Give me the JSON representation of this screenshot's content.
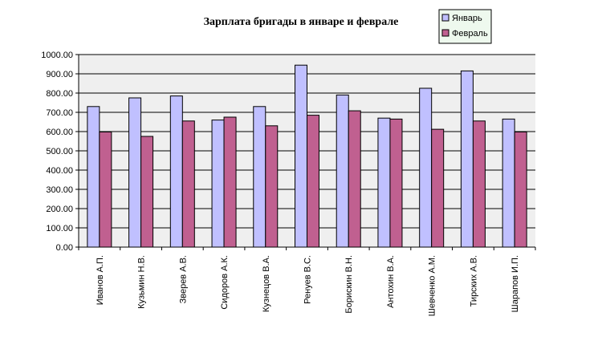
{
  "chart_data": {
    "type": "bar",
    "title": "Зарплата бригады в январе и феврале",
    "categories": [
      "Иванов А.П.",
      "Кузьмин Н.В.",
      "Зверев А.В.",
      "Сидоров А.К.",
      "Кузнецов В.А.",
      "Ренуев В.С.",
      "Борискин В.Н.",
      "Антохин В.А.",
      "Шевченко А.М.",
      "Тирских А.В.",
      "Шарапов И.П."
    ],
    "series": [
      {
        "name": "Январь",
        "color": "#c0c0ff",
        "values": [
          730,
          775,
          785,
          660,
          730,
          945,
          790,
          670,
          825,
          915,
          665
        ]
      },
      {
        "name": "Февраль",
        "color": "#c06090",
        "values": [
          598,
          575,
          655,
          675,
          630,
          685,
          708,
          665,
          612,
          655,
          598
        ]
      }
    ],
    "yticks": [
      "0.00",
      "100.00",
      "200.00",
      "300.00",
      "400.00",
      "500.00",
      "600.00",
      "700.00",
      "800.00",
      "900.00",
      "1000.00"
    ],
    "ylim": [
      0,
      1000
    ],
    "grid": true,
    "legend_position": "top-right",
    "plot_background": "#efefef"
  }
}
